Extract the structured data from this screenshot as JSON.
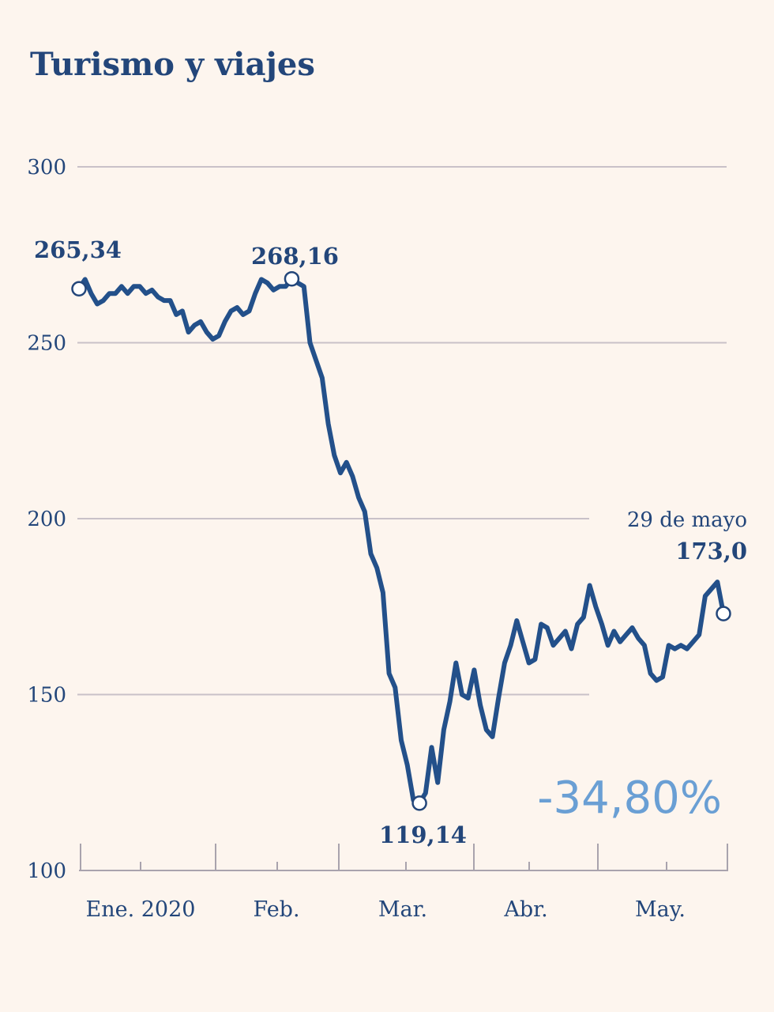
{
  "colors": {
    "background": "#fdf5ee",
    "line": "#23508a",
    "text": "#23467a",
    "change": "#6a9fd4",
    "grid": "#c9c1c8"
  },
  "chart_data": {
    "type": "line",
    "title": "Turismo y viajes",
    "xlabel": "",
    "ylabel": "",
    "ylim": [
      100,
      300
    ],
    "yticks": [
      100,
      150,
      200,
      250,
      300
    ],
    "grid": true,
    "month_labels": [
      "Ene. 2020",
      "Feb.",
      "Mar.",
      "Abr.",
      "May."
    ],
    "x": [
      1,
      2,
      3,
      4,
      5,
      6,
      7,
      8,
      9,
      10,
      11,
      12,
      13,
      14,
      15,
      16,
      17,
      18,
      19,
      20,
      21,
      22,
      23,
      24,
      25,
      26,
      27,
      28,
      29,
      30,
      31,
      32,
      33,
      34,
      35,
      36,
      37,
      38,
      39,
      40,
      41,
      42,
      43,
      44,
      45,
      46,
      47,
      48,
      49,
      50,
      51,
      52,
      53,
      54,
      55,
      56,
      57,
      58,
      59,
      60,
      61,
      62,
      63,
      64,
      65,
      66,
      67,
      68,
      69,
      70,
      71,
      72,
      73,
      74,
      75,
      76,
      77,
      78,
      79,
      80,
      81,
      82,
      83,
      84,
      85,
      86,
      87,
      88,
      89,
      90,
      91,
      92,
      93,
      94,
      95,
      96,
      97,
      98,
      99,
      100,
      101,
      102,
      103,
      104,
      105,
      106,
      107
    ],
    "series": [
      {
        "values": [
          265.34,
          268,
          264,
          261,
          262,
          264,
          264,
          266,
          264,
          266,
          266,
          264,
          265,
          263,
          262,
          262,
          258,
          259,
          253,
          255,
          256,
          253,
          251,
          252,
          256,
          259,
          260,
          258,
          259,
          264,
          268,
          267,
          265,
          266,
          266,
          268.16,
          267,
          266,
          250,
          245,
          240,
          227,
          218,
          213,
          216,
          212,
          206,
          202,
          190,
          186,
          179,
          156,
          152,
          137,
          130,
          120,
          119.14,
          122,
          135,
          125,
          140,
          148,
          159,
          150,
          149,
          157,
          147,
          140,
          138,
          149,
          159,
          164,
          171,
          165,
          159,
          160,
          170,
          169,
          164,
          166,
          168,
          163,
          170,
          172,
          181,
          175,
          170,
          164,
          168,
          165,
          167,
          169,
          166,
          164,
          156,
          154,
          155,
          164,
          163,
          164,
          163,
          165,
          167,
          178,
          180,
          182,
          173.0
        ]
      }
    ],
    "annotations": {
      "start": "265,34",
      "max": "268,16",
      "min": "119,14",
      "end_date": "29 de mayo",
      "end": "173,0",
      "change": "-34,80%"
    }
  }
}
